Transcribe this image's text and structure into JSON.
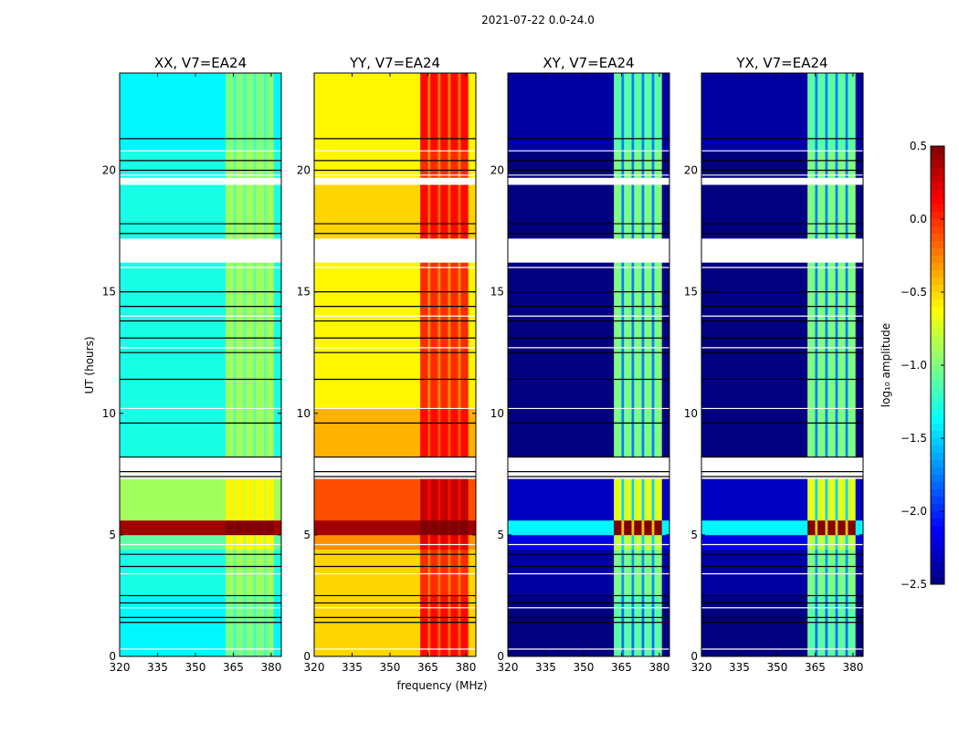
{
  "chart_data": {
    "type": "heatmap",
    "title": "2021-07-22 0.0-24.0",
    "xlabel": "frequency (MHz)",
    "ylabel": "UT (hours)",
    "xlim": [
      320,
      384
    ],
    "ylim": [
      0,
      24
    ],
    "xticks": [
      320,
      335,
      350,
      365,
      380
    ],
    "yticks": [
      0,
      5,
      10,
      15,
      20
    ],
    "colorbar": {
      "label": "log₁₀ amplitude",
      "colormap": "jet",
      "range": [
        -2.5,
        0.5
      ],
      "ticks": [
        0.5,
        0.0,
        -0.5,
        -1.0,
        -1.5,
        -2.0,
        -2.5
      ],
      "tick_labels": [
        "0.5",
        "0.0",
        "−0.5",
        "−1.0",
        "−1.5",
        "−2.0",
        "−2.5"
      ]
    },
    "freq_segments": [
      {
        "range": [
          320,
          362
        ],
        "kind": "bg"
      },
      {
        "range": [
          362,
          365
        ],
        "kind": "band"
      },
      {
        "range": [
          365,
          366
        ],
        "kind": "gap"
      },
      {
        "range": [
          366,
          369
        ],
        "kind": "band"
      },
      {
        "range": [
          369,
          370
        ],
        "kind": "gap"
      },
      {
        "range": [
          370,
          373
        ],
        "kind": "band"
      },
      {
        "range": [
          373,
          374
        ],
        "kind": "gap"
      },
      {
        "range": [
          374,
          377
        ],
        "kind": "band"
      },
      {
        "range": [
          377,
          378
        ],
        "kind": "gap"
      },
      {
        "range": [
          378,
          381
        ],
        "kind": "band"
      },
      {
        "range": [
          381,
          384
        ],
        "kind": "bg"
      }
    ],
    "time_segments": [
      [
        0,
        2.5
      ],
      [
        2.5,
        4.4
      ],
      [
        4.4,
        5.0
      ],
      [
        5.0,
        5.6
      ],
      [
        5.6,
        7.3
      ],
      [
        7.3,
        8.2
      ],
      [
        8.2,
        10.2
      ],
      [
        10.2,
        16.2
      ],
      [
        16.2,
        17.2
      ],
      [
        17.2,
        19.4
      ],
      [
        19.4,
        19.7
      ],
      [
        19.7,
        20.8
      ],
      [
        20.8,
        24
      ]
    ],
    "row_lines": [
      0.3,
      1.4,
      1.6,
      2.0,
      2.2,
      2.5,
      3.4,
      3.7,
      4.2,
      4.6,
      7.4,
      7.6,
      8.0,
      8.2,
      9.6,
      10.2,
      11.4,
      12.5,
      12.7,
      13.1,
      13.8,
      14.0,
      14.4,
      15.0,
      16.0,
      17.4,
      17.8,
      19.8,
      20.0,
      20.4,
      20.8,
      21.3
    ],
    "panels": [
      {
        "title": "XX, V7=EA24",
        "values": [
          [
            -1.4,
            -1.0
          ],
          [
            -1.3,
            -0.9
          ],
          [
            -1.1,
            -0.6
          ],
          [
            0.4,
            0.5
          ],
          [
            -0.9,
            -0.6
          ],
          [
            null,
            null
          ],
          [
            -1.3,
            -0.9
          ],
          [
            -1.3,
            -0.9
          ],
          [
            null,
            null
          ],
          [
            -1.3,
            -0.9
          ],
          [
            null,
            null
          ],
          [
            -1.3,
            -0.9
          ],
          [
            -1.4,
            -1.0
          ]
        ]
      },
      {
        "title": "YY, V7=EA24",
        "values": [
          [
            -0.5,
            0.1
          ],
          [
            -0.5,
            0.0
          ],
          [
            -0.3,
            0.2
          ],
          [
            0.4,
            0.5
          ],
          [
            -0.1,
            0.3
          ],
          [
            null,
            null
          ],
          [
            -0.4,
            0.1
          ],
          [
            -0.6,
            0.0
          ],
          [
            null,
            null
          ],
          [
            -0.5,
            0.1
          ],
          [
            null,
            null
          ],
          [
            -0.6,
            0.0
          ],
          [
            -0.6,
            0.1
          ]
        ]
      },
      {
        "title": "XY, V7=EA24",
        "values": [
          [
            -2.5,
            -1.1
          ],
          [
            -2.4,
            -1.0
          ],
          [
            -2.2,
            -0.8
          ],
          [
            -1.4,
            0.5
          ],
          [
            -2.3,
            -0.7
          ],
          [
            null,
            null
          ],
          [
            -2.5,
            -1.0
          ],
          [
            -2.5,
            -1.0
          ],
          [
            null,
            null
          ],
          [
            -2.5,
            -1.0
          ],
          [
            null,
            null
          ],
          [
            -2.5,
            -1.0
          ],
          [
            -2.4,
            -1.1
          ]
        ]
      },
      {
        "title": "YX, V7=EA24",
        "values": [
          [
            -2.5,
            -1.1
          ],
          [
            -2.4,
            -1.0
          ],
          [
            -2.2,
            -0.8
          ],
          [
            -1.4,
            0.5
          ],
          [
            -2.3,
            -0.7
          ],
          [
            null,
            null
          ],
          [
            -2.5,
            -1.0
          ],
          [
            -2.5,
            -1.0
          ],
          [
            null,
            null
          ],
          [
            -2.5,
            -1.0
          ],
          [
            null,
            null
          ],
          [
            -2.5,
            -1.0
          ],
          [
            -2.4,
            -1.1
          ]
        ]
      }
    ]
  }
}
